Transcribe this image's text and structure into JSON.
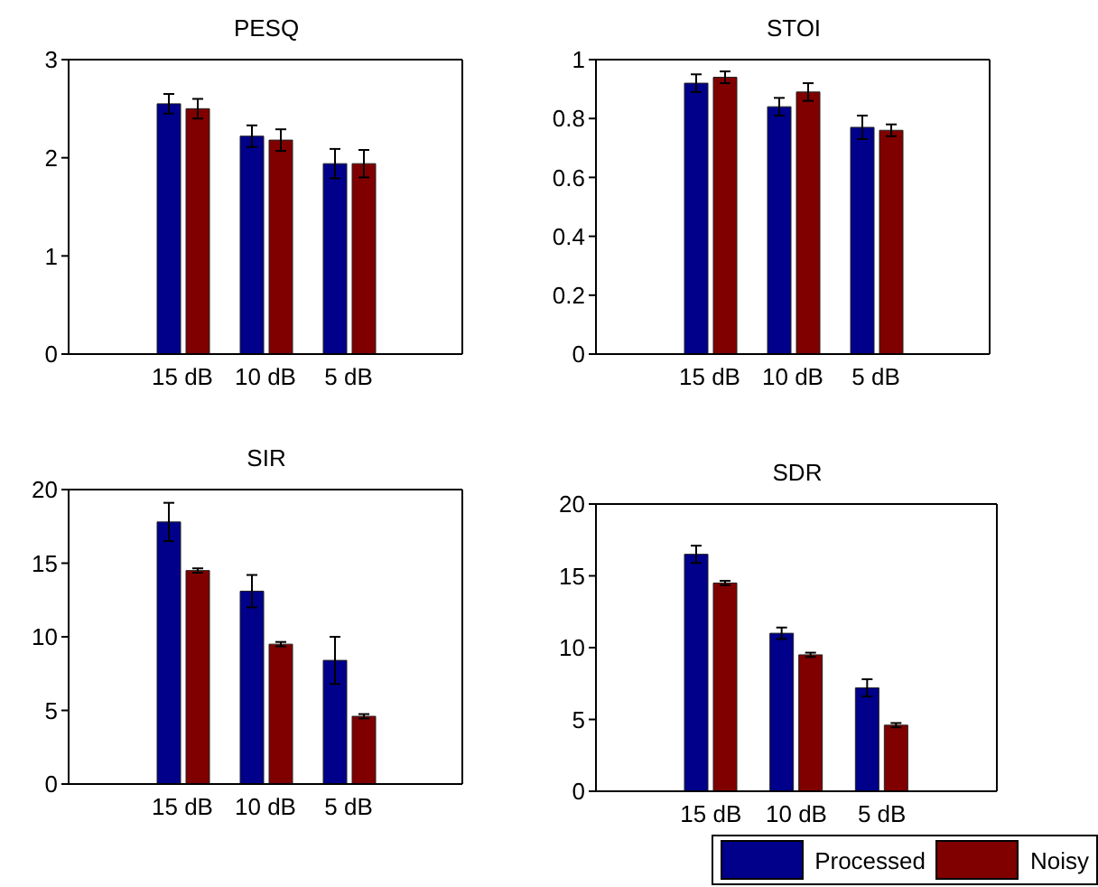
{
  "chart_data": [
    {
      "type": "bar",
      "title": "PESQ",
      "categories": [
        "15 dB",
        "10 dB",
        "5 dB"
      ],
      "ylim": [
        0,
        3
      ],
      "yticks": [
        0,
        1,
        2,
        3
      ],
      "grid": false,
      "legend": false,
      "series": [
        {
          "color": "#00008b",
          "values": [
            2.55,
            2.22,
            1.94
          ],
          "errors": [
            0.1,
            0.11,
            0.15
          ]
        },
        {
          "color": "#800000",
          "values": [
            2.5,
            2.18,
            1.94
          ],
          "errors": [
            0.1,
            0.11,
            0.14
          ]
        }
      ]
    },
    {
      "type": "bar",
      "title": "STOI",
      "categories": [
        "15 dB",
        "10 dB",
        "5 dB"
      ],
      "ylim": [
        0,
        1
      ],
      "yticks": [
        0,
        0.2,
        0.4,
        0.6,
        0.8,
        1
      ],
      "grid": false,
      "legend": false,
      "series": [
        {
          "color": "#00008b",
          "values": [
            0.92,
            0.84,
            0.77
          ],
          "errors": [
            0.03,
            0.03,
            0.04
          ]
        },
        {
          "color": "#800000",
          "values": [
            0.94,
            0.89,
            0.76
          ],
          "errors": [
            0.02,
            0.03,
            0.02
          ]
        }
      ]
    },
    {
      "type": "bar",
      "title": "SIR",
      "categories": [
        "15 dB",
        "10 dB",
        "5 dB"
      ],
      "ylim": [
        0,
        20
      ],
      "yticks": [
        0,
        5,
        10,
        15,
        20
      ],
      "grid": false,
      "legend": false,
      "series": [
        {
          "color": "#00008b",
          "values": [
            17.8,
            13.1,
            8.4
          ],
          "errors": [
            1.3,
            1.1,
            1.6
          ]
        },
        {
          "color": "#800000",
          "values": [
            14.5,
            9.5,
            4.6
          ],
          "errors": [
            0.15,
            0.15,
            0.15
          ]
        }
      ]
    },
    {
      "type": "bar",
      "title": "SDR",
      "categories": [
        "15 dB",
        "10 dB",
        "5 dB"
      ],
      "ylim": [
        0,
        20
      ],
      "yticks": [
        0,
        5,
        10,
        15,
        20
      ],
      "grid": false,
      "legend": "bottom right",
      "series": [
        {
          "name": "Processed",
          "color": "#00008b",
          "values": [
            16.5,
            11.0,
            7.2
          ],
          "errors": [
            0.6,
            0.4,
            0.6
          ]
        },
        {
          "name": "Noisy",
          "color": "#800000",
          "values": [
            14.5,
            9.5,
            4.6
          ],
          "errors": [
            0.15,
            0.15,
            0.15
          ]
        }
      ]
    }
  ]
}
